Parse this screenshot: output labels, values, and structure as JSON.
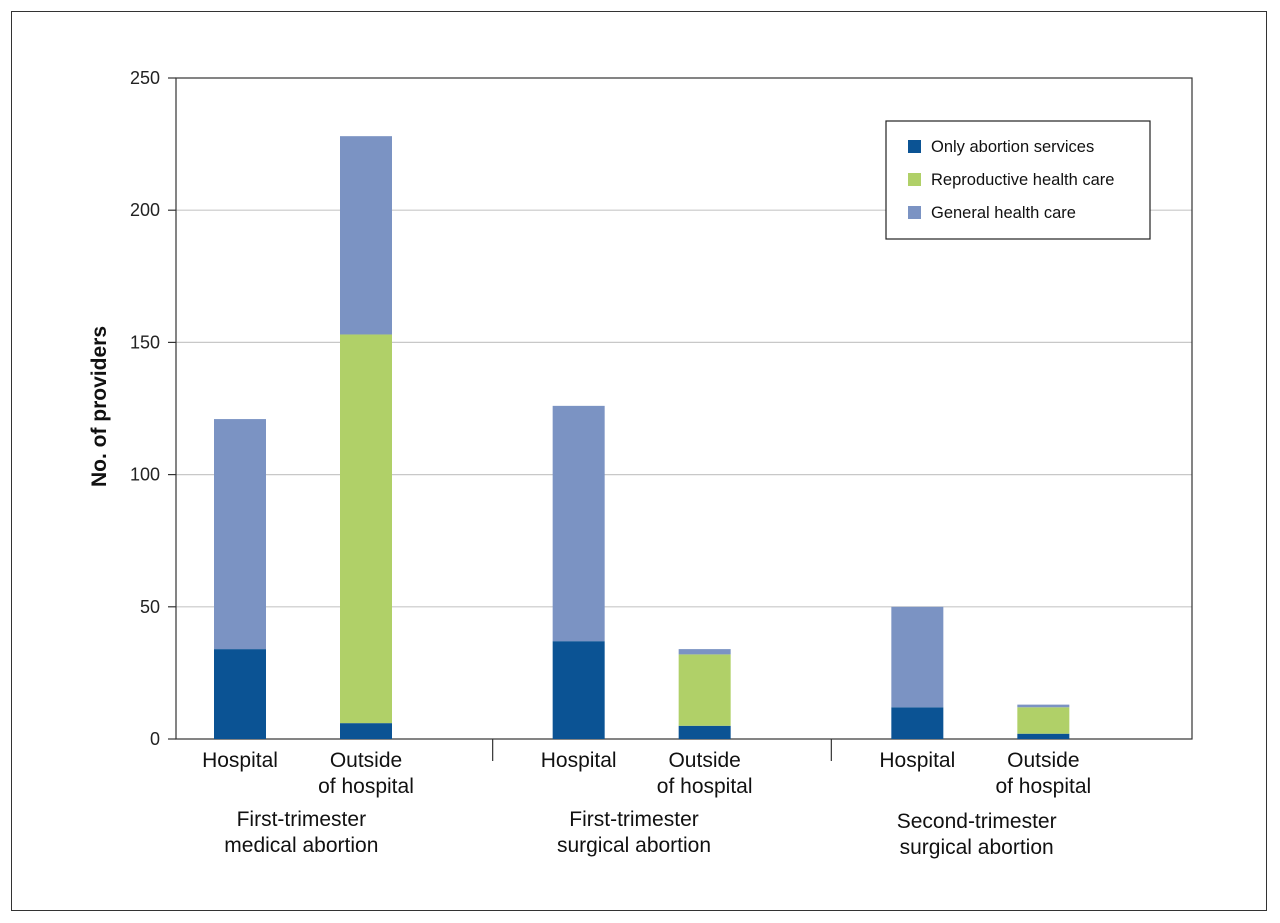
{
  "chart_data": {
    "type": "bar",
    "stacked": true,
    "ylabel": "No. of providers",
    "ylim": [
      0,
      250
    ],
    "yticks": [
      0,
      50,
      100,
      150,
      200,
      250
    ],
    "grid": true,
    "legend_position": "top-right",
    "groups": [
      {
        "label": [
          "First-trimester",
          "medical abortion"
        ]
      },
      {
        "label": [
          "First-trimester",
          "surgical abortion"
        ]
      },
      {
        "label": [
          "Second-trimester",
          "surgical abortion"
        ]
      }
    ],
    "bars": [
      {
        "group": 0,
        "label": [
          "Hospital"
        ]
      },
      {
        "group": 0,
        "label": [
          "Outside",
          "of hospital"
        ]
      },
      {
        "group": 1,
        "label": [
          "Hospital"
        ]
      },
      {
        "group": 1,
        "label": [
          "Outside",
          "of hospital"
        ]
      },
      {
        "group": 2,
        "label": [
          "Hospital"
        ]
      },
      {
        "group": 2,
        "label": [
          "Outside",
          "of hospital"
        ]
      }
    ],
    "series": [
      {
        "name": "Only abortion services",
        "color": "#0b5394",
        "values": [
          34,
          6,
          37,
          5,
          12,
          2
        ]
      },
      {
        "name": "Reproductive health care",
        "color": "#b0d068",
        "values": [
          0,
          147,
          0,
          27,
          0,
          10
        ]
      },
      {
        "name": "General health care",
        "color": "#7b93c3",
        "values": [
          87,
          75,
          89,
          2,
          38,
          1
        ]
      }
    ]
  }
}
